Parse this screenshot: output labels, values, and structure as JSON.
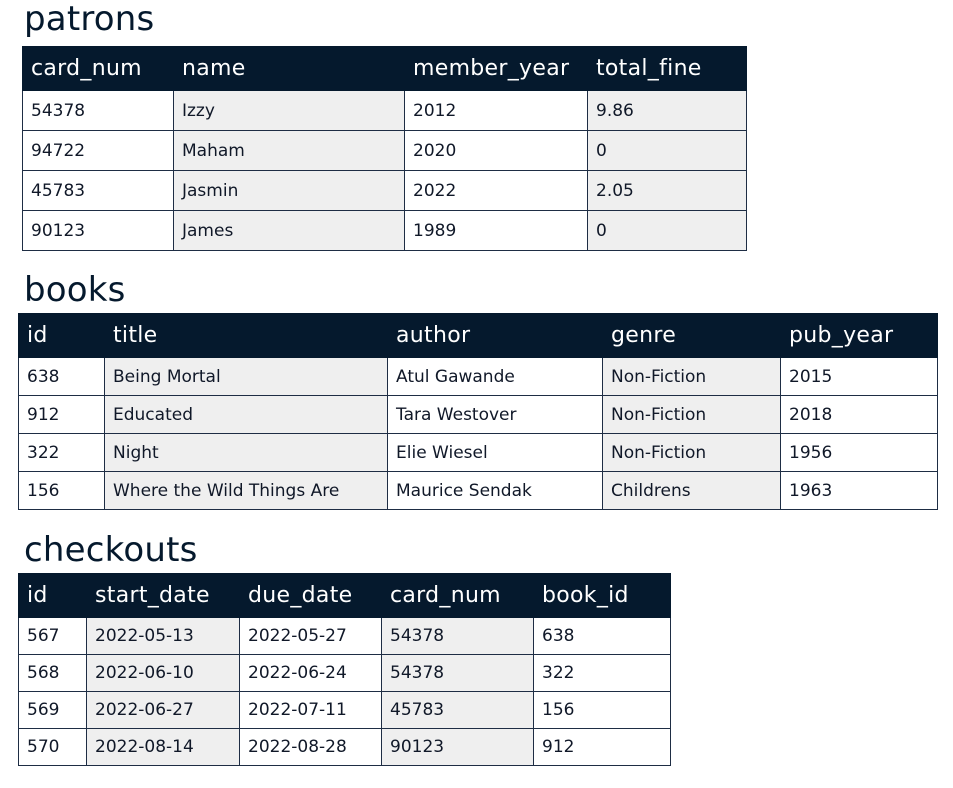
{
  "patrons": {
    "title": "patrons",
    "columns": [
      "card_num",
      "name",
      "member_year",
      "total_fine"
    ],
    "rows": [
      [
        "54378",
        "Izzy",
        "2012",
        "9.86"
      ],
      [
        "94722",
        "Maham",
        "2020",
        "0"
      ],
      [
        "45783",
        "Jasmin",
        "2022",
        "2.05"
      ],
      [
        "90123",
        "James",
        "1989",
        "0"
      ]
    ]
  },
  "books": {
    "title": "books",
    "columns": [
      "id",
      "title",
      "author",
      "genre",
      "pub_year"
    ],
    "rows": [
      [
        "638",
        "Being Mortal",
        "Atul Gawande",
        "Non-Fiction",
        "2015"
      ],
      [
        "912",
        "Educated",
        "Tara Westover",
        "Non-Fiction",
        "2018"
      ],
      [
        "322",
        "Night",
        "Elie Wiesel",
        "Non-Fiction",
        "1956"
      ],
      [
        "156",
        "Where the Wild Things Are",
        "Maurice Sendak",
        "Childrens",
        "1963"
      ]
    ]
  },
  "checkouts": {
    "title": "checkouts",
    "columns": [
      "id",
      "start_date",
      "due_date",
      "card_num",
      "book_id"
    ],
    "rows": [
      [
        "567",
        "2022-05-13",
        "2022-05-27",
        "54378",
        "638"
      ],
      [
        "568",
        "2022-06-10",
        "2022-06-24",
        "54378",
        "322"
      ],
      [
        "569",
        "2022-06-27",
        "2022-07-11",
        "45783",
        "156"
      ],
      [
        "570",
        "2022-08-14",
        "2022-08-28",
        "90123",
        "912"
      ]
    ]
  }
}
